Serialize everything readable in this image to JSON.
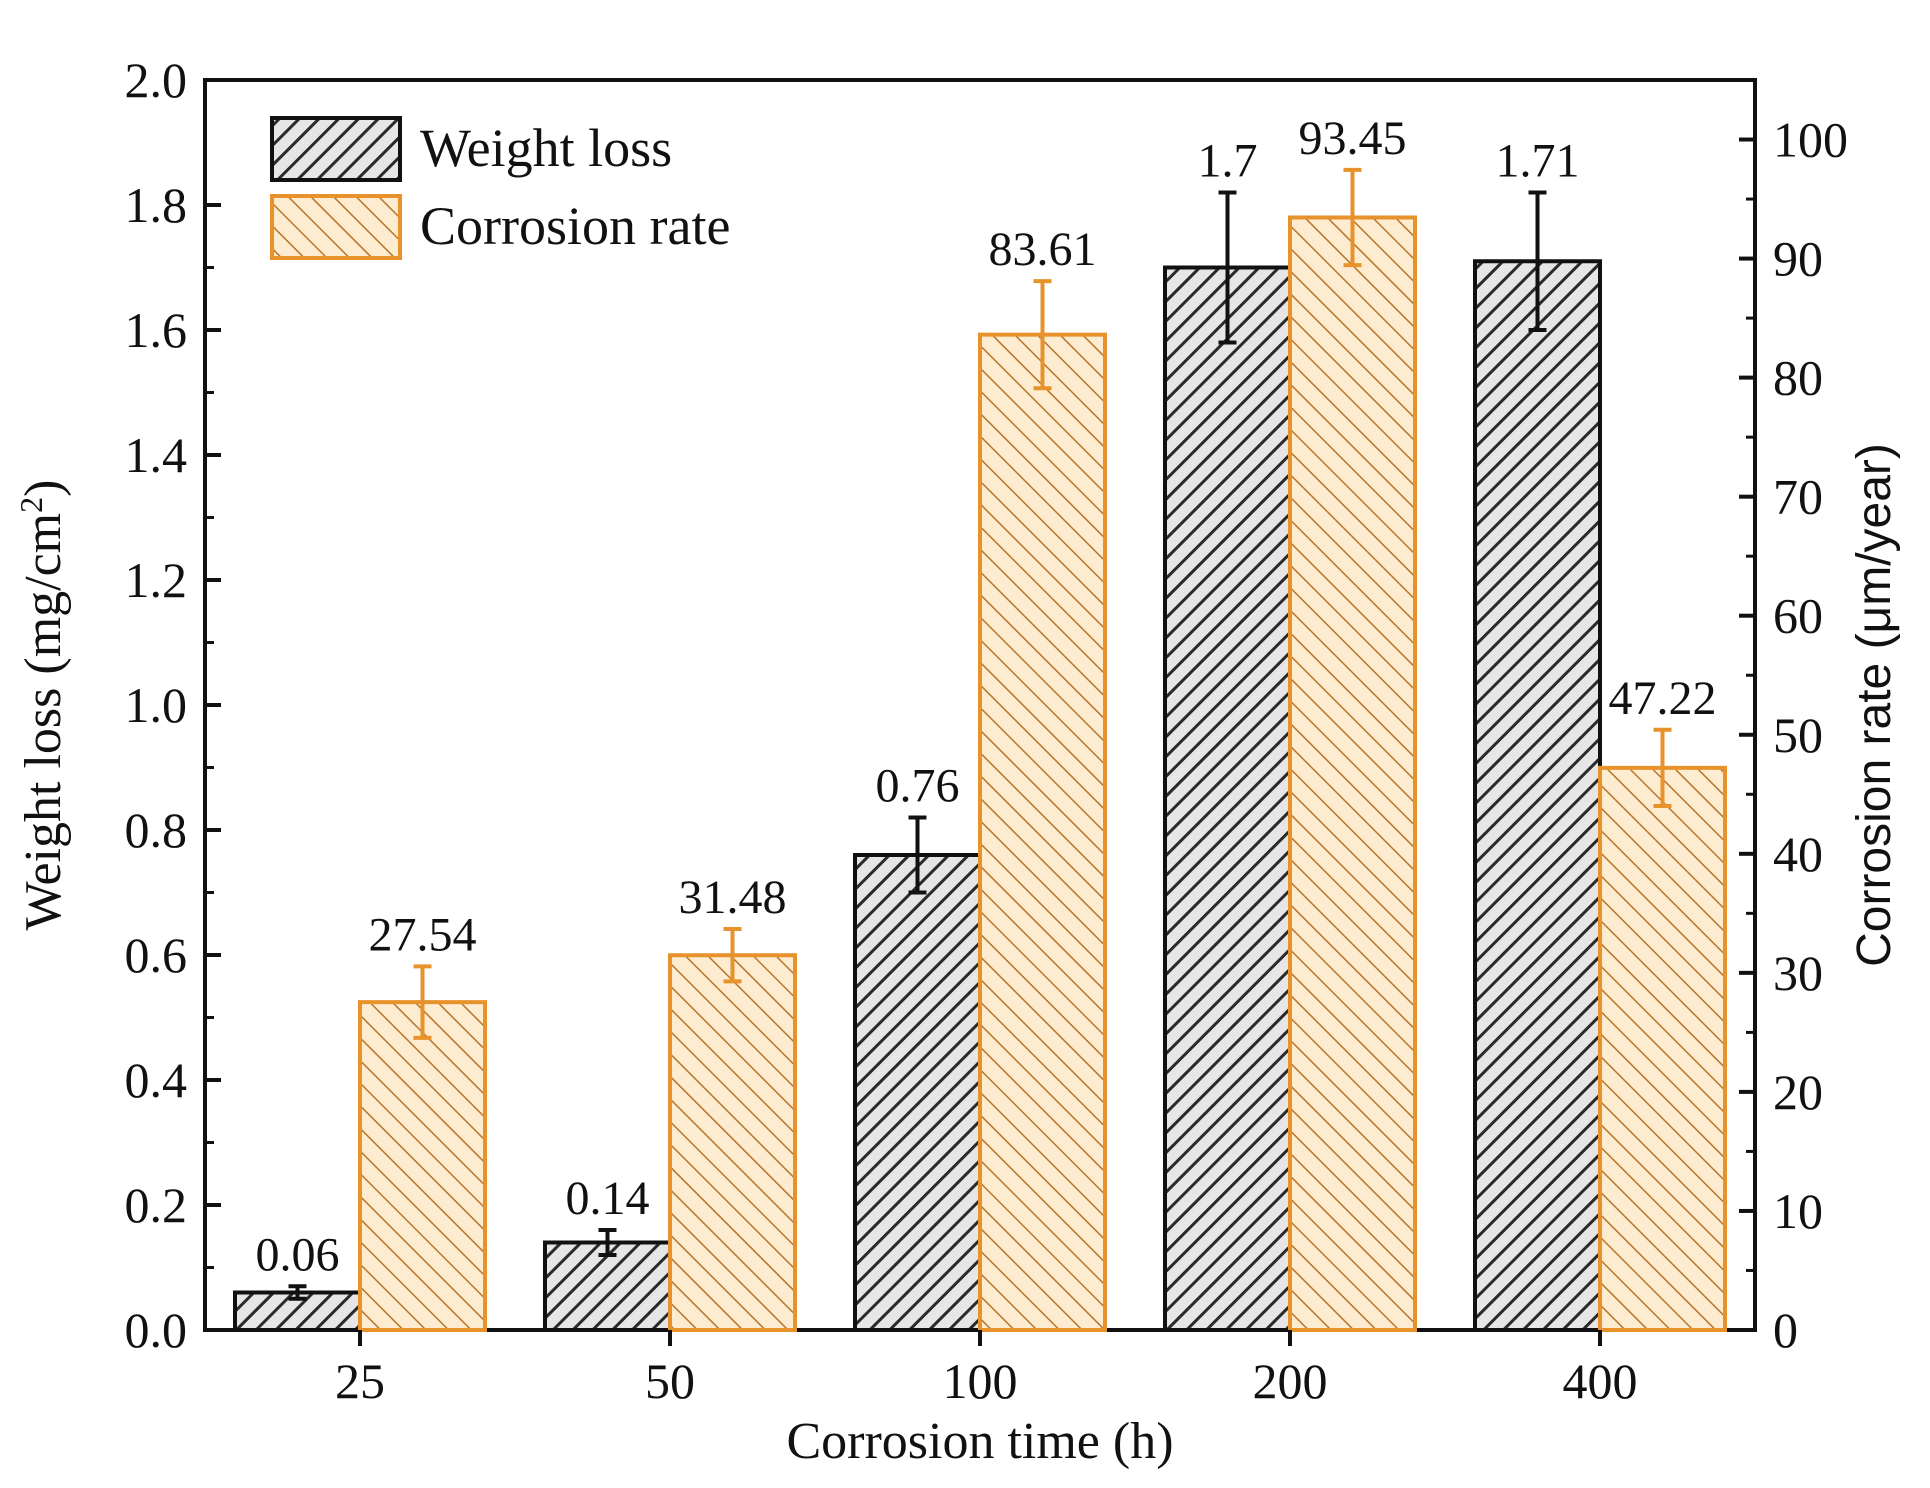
{
  "chart_data": {
    "type": "bar",
    "categories": [
      "25",
      "50",
      "100",
      "200",
      "400"
    ],
    "xlabel": "Corrosion time (h)",
    "ylabel_left": "Weight loss (mg/cm",
    "ylabel_left_sup": "2",
    "ylabel_left_close": ")",
    "ylabel_right": "Corrosion rate (μm/year)",
    "ylim_left": [
      0,
      2.0
    ],
    "ylim_right": [
      0,
      105
    ],
    "yticks_left": [
      "0.0",
      "0.2",
      "0.4",
      "0.6",
      "0.8",
      "1.0",
      "1.2",
      "1.4",
      "1.6",
      "1.8",
      "2.0"
    ],
    "yticks_right": [
      "0",
      "10",
      "20",
      "30",
      "40",
      "50",
      "60",
      "70",
      "80",
      "90",
      "100"
    ],
    "legend_position": "top-left",
    "series": [
      {
        "name": "Weight loss",
        "axis": "left",
        "color": "#222222",
        "values": [
          0.06,
          0.14,
          0.76,
          1.7,
          1.71
        ],
        "labels": [
          "0.06",
          "0.14",
          "0.76",
          "1.7",
          "1.71"
        ],
        "errors": [
          0.01,
          0.02,
          0.06,
          0.12,
          0.11
        ]
      },
      {
        "name": "Corrosion rate",
        "axis": "right",
        "color": "#e8922c",
        "fill": "#fdeccf",
        "values": [
          27.54,
          31.48,
          83.61,
          93.45,
          47.22
        ],
        "labels": [
          "27.54",
          "31.48",
          "83.61",
          "93.45",
          "47.22"
        ],
        "errors": [
          3.0,
          2.2,
          4.5,
          4.0,
          3.2
        ]
      }
    ]
  }
}
